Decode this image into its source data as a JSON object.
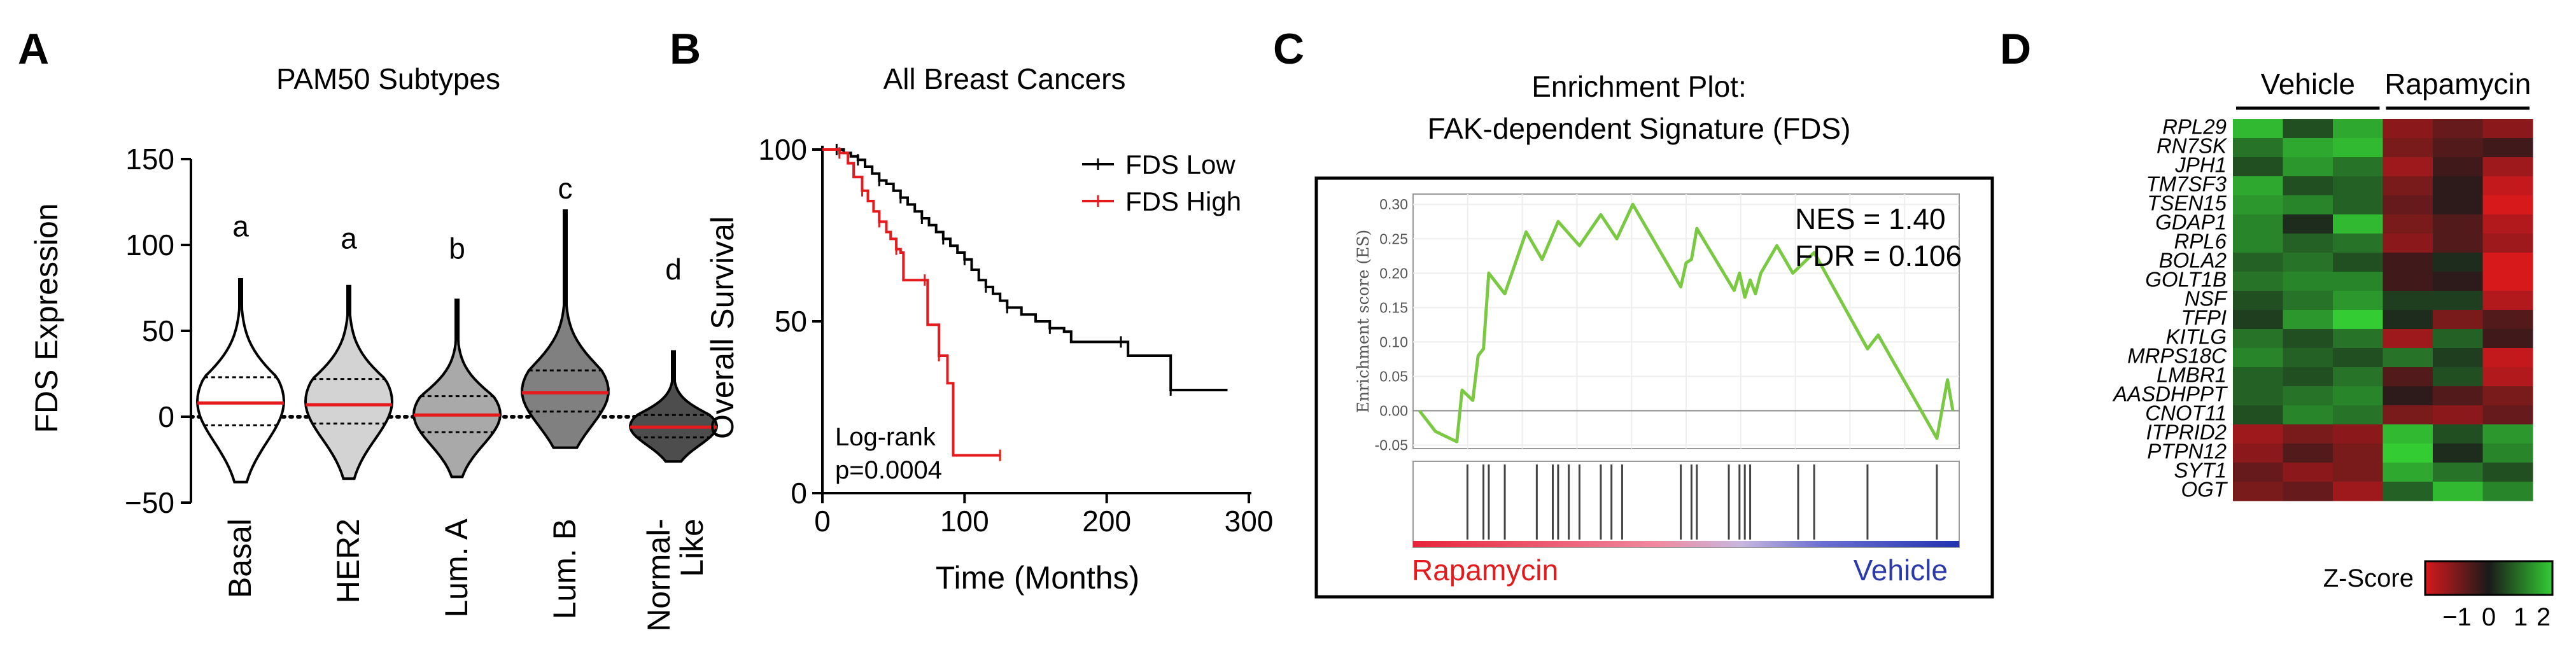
{
  "panel_letters": [
    "A",
    "B",
    "C",
    "D"
  ],
  "chart_data": [
    {
      "type": "violin",
      "panel": "A",
      "title": "PAM50 Subtypes",
      "ylabel": "FDS Expression",
      "ylim": [
        -50,
        160
      ],
      "yticks": [
        "150",
        "100",
        "50",
        "0",
        "−50"
      ],
      "ytick_values": [
        150,
        100,
        50,
        0,
        -50
      ],
      "categories": [
        "Basal",
        "HER2",
        "Lum. A",
        "Lum. B",
        "Normal-\nLike"
      ],
      "category_labels": [
        "Basal",
        "HER2",
        "Lum. A",
        "Lum. B",
        "Normal-",
        "Like"
      ],
      "medians": [
        8,
        7,
        1,
        14,
        -6
      ],
      "q1": [
        -5,
        -4,
        -9,
        3,
        -12
      ],
      "q3": [
        23,
        22,
        12,
        27,
        1
      ],
      "min": [
        -38,
        -36,
        -35,
        -18,
        -26
      ],
      "max": [
        80,
        76,
        68,
        120,
        38
      ],
      "fills": [
        "#ffffff",
        "#d3d3d3",
        "#a9a9a9",
        "#808080",
        "#4d4d4d"
      ],
      "significance": [
        "a",
        "a",
        "b",
        "c",
        "d"
      ],
      "sig_y": [
        47,
        40,
        34,
        69,
        22
      ],
      "reference_line": 0
    },
    {
      "type": "kaplan-meier",
      "panel": "B",
      "title": "All Breast Cancers",
      "xlabel": "Time (Months)",
      "ylabel": "Overall Survival",
      "xlim": [
        0,
        300
      ],
      "ylim": [
        0,
        100
      ],
      "xticks": [
        "0",
        "100",
        "200",
        "300"
      ],
      "xtick_values": [
        0,
        100,
        200,
        300
      ],
      "yticks": [
        "100",
        "50",
        "0"
      ],
      "ytick_values": [
        100,
        50,
        0
      ],
      "series": [
        {
          "name": "FDS Low",
          "color": "#000000",
          "points": [
            [
              0,
              100
            ],
            [
              10,
              100
            ],
            [
              15,
              99
            ],
            [
              20,
              98
            ],
            [
              25,
              97
            ],
            [
              30,
              95
            ],
            [
              35,
              93
            ],
            [
              40,
              91
            ],
            [
              45,
              90
            ],
            [
              50,
              88
            ],
            [
              55,
              86
            ],
            [
              60,
              84
            ],
            [
              65,
              82
            ],
            [
              70,
              80
            ],
            [
              75,
              78
            ],
            [
              80,
              76
            ],
            [
              85,
              74
            ],
            [
              90,
              72
            ],
            [
              95,
              70
            ],
            [
              100,
              68
            ],
            [
              105,
              65
            ],
            [
              110,
              62
            ],
            [
              115,
              60
            ],
            [
              120,
              58
            ],
            [
              125,
              56
            ],
            [
              130,
              54
            ],
            [
              140,
              52
            ],
            [
              150,
              50
            ],
            [
              160,
              48
            ],
            [
              170,
              47
            ],
            [
              175,
              44
            ],
            [
              210,
              44
            ],
            [
              215,
              40
            ],
            [
              240,
              40
            ],
            [
              245,
              30
            ],
            [
              285,
              30
            ]
          ]
        },
        {
          "name": "FDS High",
          "color": "#e41a1c",
          "points": [
            [
              0,
              100
            ],
            [
              12,
              99
            ],
            [
              18,
              96
            ],
            [
              22,
              92
            ],
            [
              28,
              88
            ],
            [
              32,
              85
            ],
            [
              36,
              82
            ],
            [
              40,
              79
            ],
            [
              45,
              76
            ],
            [
              48,
              74
            ],
            [
              52,
              71
            ],
            [
              55,
              70
            ],
            [
              57,
              62
            ],
            [
              72,
              62
            ],
            [
              74,
              49
            ],
            [
              80,
              49
            ],
            [
              82,
              40
            ],
            [
              88,
              32
            ],
            [
              92,
              11
            ],
            [
              125,
              11
            ]
          ]
        }
      ],
      "annotation": [
        "Log-rank",
        "p=0.0004"
      ]
    },
    {
      "type": "line",
      "panel": "C",
      "title": [
        "Enrichment Plot:",
        "FAK-dependent Signature (FDS)"
      ],
      "ylabel": "Enrichment score (ES)",
      "ylim": [
        -0.05,
        0.32
      ],
      "yticks": [
        "0.30",
        "0.25",
        "0.20",
        "0.15",
        "0.10",
        "0.05",
        "0.00",
        "-0.05"
      ],
      "ytick_values": [
        0.3,
        0.25,
        0.2,
        0.15,
        0.1,
        0.05,
        0.0,
        -0.05
      ],
      "color": "#7ac943",
      "es_points": [
        [
          0,
          0
        ],
        [
          3,
          -0.03
        ],
        [
          7,
          -0.045
        ],
        [
          8,
          0.03
        ],
        [
          10,
          0.015
        ],
        [
          11,
          0.08
        ],
        [
          12,
          0.09
        ],
        [
          13,
          0.2
        ],
        [
          16,
          0.17
        ],
        [
          20,
          0.26
        ],
        [
          23,
          0.22
        ],
        [
          26,
          0.275
        ],
        [
          30,
          0.24
        ],
        [
          34,
          0.285
        ],
        [
          37,
          0.25
        ],
        [
          40,
          0.3
        ],
        [
          49,
          0.18
        ],
        [
          50,
          0.215
        ],
        [
          51,
          0.22
        ],
        [
          52,
          0.265
        ],
        [
          59,
          0.175
        ],
        [
          60,
          0.2
        ],
        [
          61,
          0.165
        ],
        [
          62,
          0.19
        ],
        [
          63,
          0.17
        ],
        [
          64,
          0.2
        ],
        [
          67,
          0.24
        ],
        [
          70,
          0.2
        ],
        [
          74,
          0.23
        ],
        [
          84,
          0.09
        ],
        [
          86,
          0.11
        ],
        [
          97,
          -0.04
        ],
        [
          99,
          0.045
        ],
        [
          100,
          0.0
        ]
      ],
      "hit_positions": [
        9,
        12,
        13,
        16,
        22,
        25,
        26,
        28,
        30,
        34,
        36,
        38,
        49,
        51,
        52,
        58,
        60,
        61,
        62,
        71,
        74,
        84,
        97
      ],
      "stats": [
        "NES = 1.40",
        "FDR = 0.106"
      ],
      "left_label": "Rapamycin",
      "right_label": "Vehicle",
      "left_color": "#e41a1c",
      "right_color": "#2b3aa8"
    },
    {
      "type": "heatmap",
      "panel": "D",
      "group_labels": [
        "Vehicle",
        "Rapamycin"
      ],
      "genes": [
        "RPL29",
        "RN7SK",
        "JPH1",
        "TM7SF3",
        "TSEN15",
        "GDAP1",
        "RPL6",
        "BOLA2",
        "GOLT1B",
        "NSF",
        "TFPI",
        "KITLG",
        "MRPS18C",
        "LMBR1",
        "AASDHPPT",
        "CNOT11",
        "ITPRID2",
        "PTPN12",
        "SYT1",
        "OGT"
      ],
      "values": [
        [
          0.9,
          0.3,
          0.8,
          -0.6,
          -0.4,
          -0.6
        ],
        [
          0.5,
          0.8,
          0.9,
          -0.5,
          -0.3,
          -0.2
        ],
        [
          0.3,
          0.7,
          0.5,
          -0.7,
          -0.2,
          -0.7
        ],
        [
          0.8,
          0.3,
          0.4,
          -0.5,
          -0.1,
          -0.9
        ],
        [
          0.7,
          0.6,
          0.4,
          -0.4,
          -0.1,
          -1.0
        ],
        [
          0.6,
          0.1,
          0.9,
          -0.5,
          -0.3,
          -0.8
        ],
        [
          0.6,
          0.4,
          0.5,
          -0.6,
          -0.3,
          -0.7
        ],
        [
          0.4,
          0.5,
          0.3,
          -0.2,
          0.1,
          -1.0
        ],
        [
          0.5,
          0.6,
          0.6,
          -0.2,
          -0.1,
          -1.0
        ],
        [
          0.3,
          0.5,
          0.7,
          0.2,
          0.2,
          -0.8
        ],
        [
          0.2,
          0.7,
          1.0,
          0.1,
          -0.5,
          -0.3
        ],
        [
          0.5,
          0.3,
          0.5,
          -0.7,
          0.4,
          -0.2
        ],
        [
          0.6,
          0.4,
          0.3,
          0.5,
          0.2,
          -0.9
        ],
        [
          0.4,
          0.3,
          0.5,
          -0.3,
          0.3,
          -0.8
        ],
        [
          0.4,
          0.5,
          0.6,
          -0.1,
          -0.3,
          -0.5
        ],
        [
          0.3,
          0.6,
          0.5,
          -0.5,
          -0.6,
          -0.4
        ],
        [
          -0.7,
          -0.5,
          -0.6,
          0.9,
          0.3,
          0.7
        ],
        [
          -0.6,
          -0.3,
          -0.5,
          1.0,
          0.1,
          0.6
        ],
        [
          -0.4,
          -0.6,
          -0.5,
          0.8,
          0.5,
          0.3
        ],
        [
          -0.5,
          -0.4,
          -0.7,
          0.4,
          0.9,
          0.6
        ]
      ],
      "colorbar_label": "Z-Score",
      "colorbar_ticks": [
        "−1",
        "0",
        "1",
        "2"
      ],
      "colorbar_tick_values": [
        -1,
        0,
        1,
        2
      ],
      "colorbar_range": [
        -2,
        2
      ],
      "low_color": "#d7191c",
      "mid_color": "#1a1a1a",
      "high_color": "#33cc33"
    }
  ]
}
